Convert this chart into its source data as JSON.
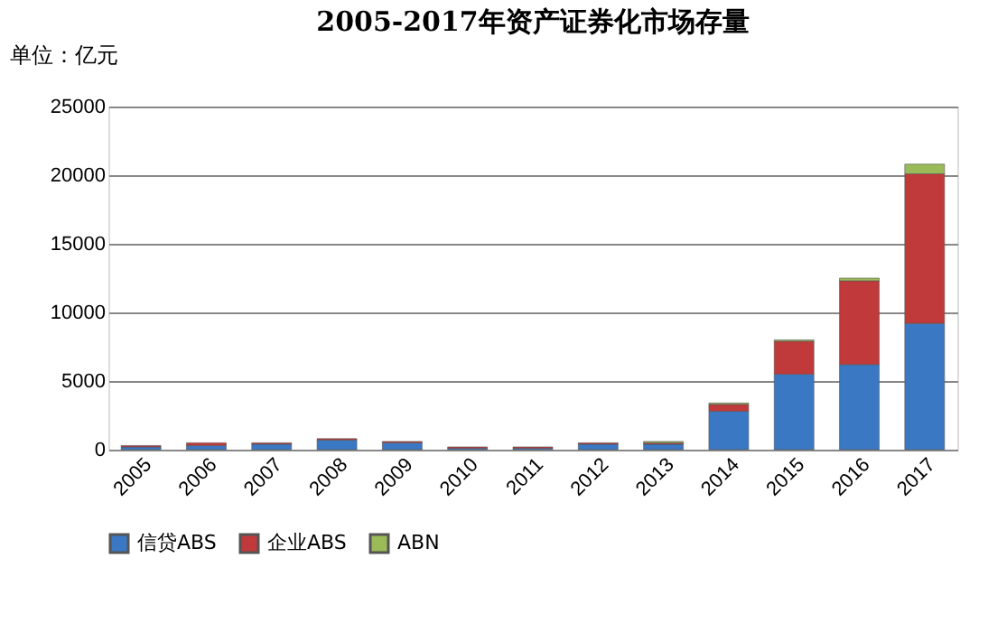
{
  "chart_data": {
    "type": "bar",
    "title": "2005-2017年资产证券化市场存量",
    "ylabel": "单位：亿元",
    "categories": [
      "2005",
      "2006",
      "2007",
      "2008",
      "2009",
      "2010",
      "2011",
      "2012",
      "2013",
      "2014",
      "2015",
      "2016",
      "2017"
    ],
    "stacked": true,
    "series": [
      {
        "name": "信贷ABS",
        "color": "#3a78c4",
        "values": [
          200,
          300,
          400,
          700,
          500,
          100,
          100,
          400,
          400,
          2800,
          5500,
          6200,
          9200
        ]
      },
      {
        "name": "企业ABS",
        "color": "#c0393b",
        "values": [
          100,
          200,
          100,
          100,
          100,
          100,
          100,
          100,
          100,
          500,
          2400,
          6100,
          10900
        ]
      },
      {
        "name": "ABN",
        "color": "#9bbb59",
        "values": [
          null,
          null,
          null,
          null,
          null,
          null,
          null,
          null,
          100,
          100,
          100,
          200,
          700
        ]
      }
    ],
    "ylim": [
      0,
      25000
    ],
    "yticks": [
      0,
      5000,
      10000,
      15000,
      20000,
      25000
    ],
    "grid": "y",
    "legend": "bottom"
  }
}
